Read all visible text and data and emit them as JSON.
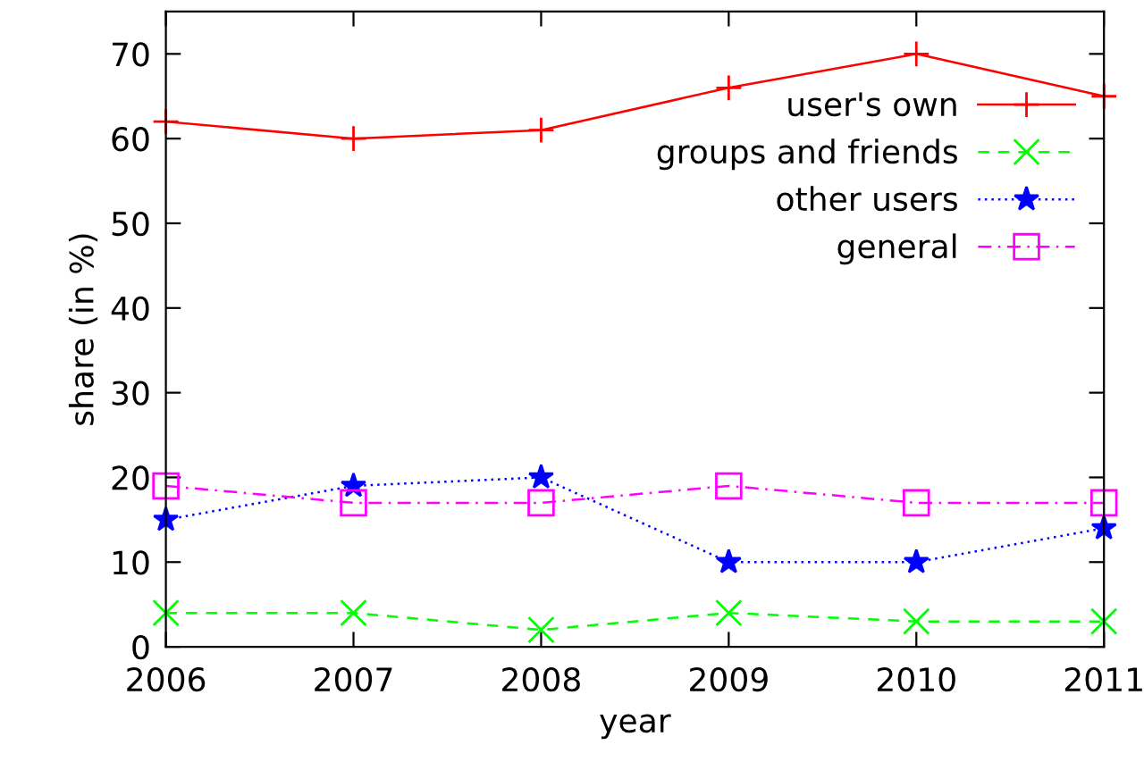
{
  "chart_data": {
    "type": "line",
    "xlabel": "year",
    "ylabel": "share (in %)",
    "x": [
      2006,
      2007,
      2008,
      2009,
      2010,
      2011
    ],
    "series": [
      {
        "name": "user's own",
        "color": "#ff0000",
        "values": [
          62,
          60,
          61,
          66,
          70,
          65
        ],
        "marker": "plus",
        "line_style": "solid"
      },
      {
        "name": "groups and friends",
        "color": "#00ff00",
        "values": [
          4,
          4,
          2,
          4,
          3,
          3
        ],
        "marker": "cross",
        "line_style": "dashed"
      },
      {
        "name": "other users",
        "color": "#0000ff",
        "values": [
          15,
          19,
          20,
          10,
          10,
          14
        ],
        "marker": "star",
        "line_style": "dotted"
      },
      {
        "name": "general",
        "color": "#ff00ff",
        "values": [
          19,
          17,
          17,
          19,
          17,
          17
        ],
        "marker": "square",
        "line_style": "dashdot"
      }
    ],
    "xlim": [
      2006,
      2011
    ],
    "xticks": [
      2006,
      2007,
      2008,
      2009,
      2010,
      2011
    ],
    "ylim": [
      0,
      75
    ],
    "yticks": [
      0,
      10,
      20,
      30,
      40,
      50,
      60,
      70
    ],
    "grid": false,
    "legend": "top right"
  }
}
